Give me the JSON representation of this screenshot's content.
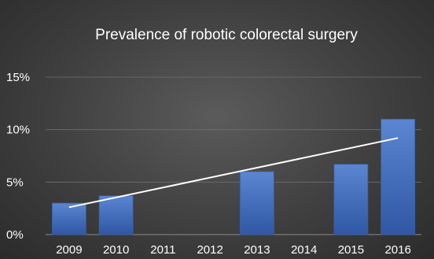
{
  "chart_data": {
    "type": "bar",
    "title": "Prevalence of robotic colorectal surgery",
    "categories": [
      "2009",
      "2010",
      "2011",
      "2012",
      "2013",
      "2014",
      "2015",
      "2016"
    ],
    "series": [
      {
        "values": [
          3.0,
          3.7,
          0,
          0,
          6.0,
          0,
          6.7,
          11.0
        ]
      }
    ],
    "trendline": {
      "type": "linear",
      "start_value": 2.6,
      "end_value": 9.2
    },
    "xlabel": "",
    "ylabel": "",
    "ylim": [
      0,
      15
    ],
    "yticks": [
      0,
      5,
      10,
      15
    ],
    "ytick_labels": [
      "0%",
      "5%",
      "10%",
      "15%"
    ],
    "grid": true,
    "legend": "none",
    "colors": {
      "bar_fill_top": "#5b86d1",
      "bar_fill_bottom": "#2f57a4",
      "trendline": "#ffffff",
      "text": "#ffffff"
    }
  }
}
